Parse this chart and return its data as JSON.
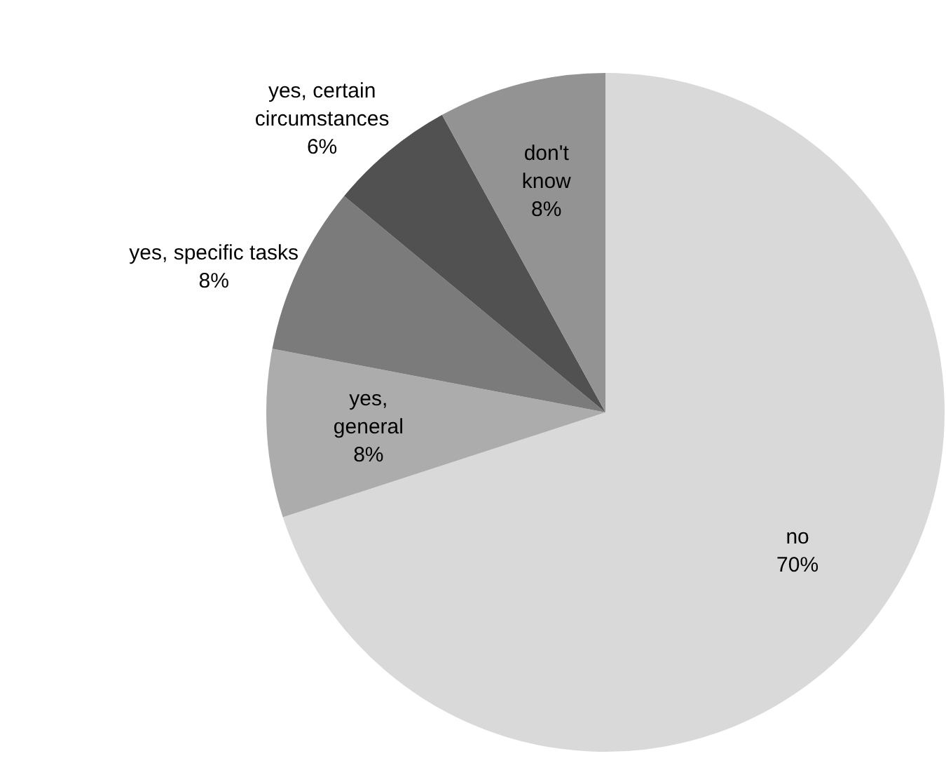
{
  "chart_data": {
    "type": "pie",
    "categories": [
      "no",
      "yes, general",
      "yes, specific tasks",
      "yes, certain circumstances",
      "don't know"
    ],
    "values": [
      70,
      8,
      8,
      6,
      8
    ],
    "colors": [
      "#d9d9d9",
      "#acacac",
      "#7b7b7b",
      "#515151",
      "#939393"
    ],
    "value_labels": [
      "70%",
      "8%",
      "8%",
      "6%",
      "8%"
    ],
    "legend": false
  }
}
